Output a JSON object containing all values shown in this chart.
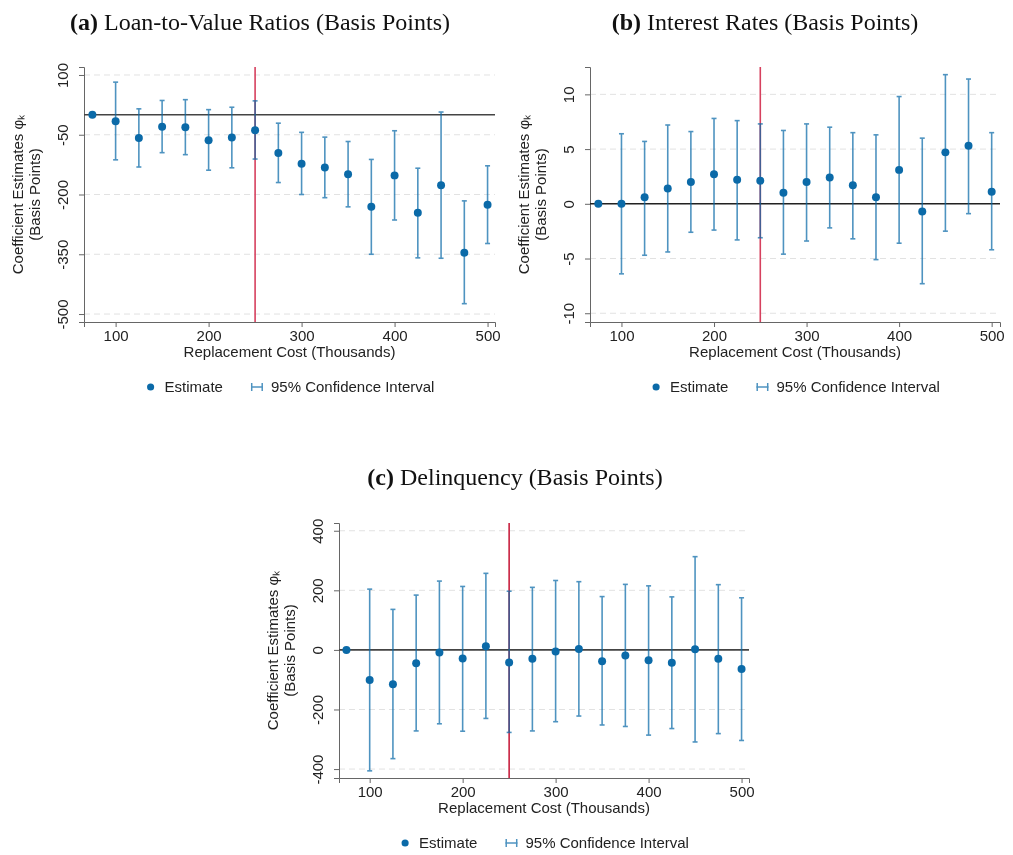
{
  "chart_data": [
    {
      "type": "scatter",
      "title": "(a) Loan-to-Value Ratios (Basis Points)",
      "xlabel": "Replacement Cost (Thousands)",
      "ylabel": "Coefficient Estimates φₖ\n(Basis Points)",
      "annotations": [
        "95% Confidence Interval"
      ],
      "x": [
        75,
        100,
        125,
        150,
        175,
        200,
        225,
        250,
        275,
        300,
        325,
        350,
        375,
        400,
        425,
        450,
        475,
        500
      ],
      "xlim": [
        66,
        508
      ],
      "xticks": [
        100,
        200,
        300,
        400,
        500
      ],
      "ylim": [
        -520,
        120
      ],
      "yticks": [
        100,
        -50,
        -200,
        -350,
        -500
      ],
      "grid": "y",
      "legend": "bottom",
      "marker": "circle",
      "series": [
        {
          "name": "Estimate",
          "color": "#0b6aa8",
          "values": [
            0,
            -16,
            -58,
            -30,
            -31,
            -64,
            -57,
            -39,
            -96,
            -123,
            -132,
            -149,
            -231,
            -152,
            -246,
            -177,
            -346,
            -226
          ],
          "errors": [
            null,
            [
              -113,
              82
            ],
            [
              -131,
              15
            ],
            [
              -95,
              36
            ],
            [
              -100,
              38
            ],
            [
              -139,
              13
            ],
            [
              -133,
              19
            ],
            [
              -111,
              35
            ],
            [
              -170,
              -21
            ],
            [
              -200,
              -44
            ],
            [
              -208,
              -56
            ],
            [
              -231,
              -67
            ],
            [
              -350,
              -112
            ],
            [
              -264,
              -40
            ],
            [
              -359,
              -134
            ],
            [
              -360,
              7
            ],
            [
              -474,
              -216
            ],
            [
              -323,
              -128
            ]
          ]
        }
      ],
      "ref_lines": [
        {
          "axis": "x",
          "value": 250,
          "color": "#d6405e"
        },
        {
          "axis": "y",
          "value": 0,
          "color": "#444444"
        }
      ]
    },
    {
      "type": "scatter",
      "title": "(b) Interest Rates (Basis Points)",
      "xlabel": "Replacement Cost (Thousands)",
      "ylabel": "Coefficient Estimates φₖ\n(Basis Points)",
      "annotations": [
        "95% Confidence Interval"
      ],
      "x": [
        75,
        100,
        125,
        150,
        175,
        200,
        225,
        250,
        275,
        300,
        325,
        350,
        375,
        400,
        425,
        450,
        475,
        500
      ],
      "xlim": [
        66,
        509
      ],
      "xticks": [
        100,
        200,
        300,
        400,
        500
      ],
      "ylim": [
        -10.8,
        12.5
      ],
      "yticks": [
        10,
        5,
        0,
        -5,
        -10
      ],
      "grid": "y",
      "legend": "bottom",
      "marker": "circle",
      "series": [
        {
          "name": "Estimate",
          "color": "#0b6aa8",
          "values": [
            0,
            0,
            0.6,
            1.4,
            2,
            2.7,
            2.2,
            2.1,
            1,
            2,
            2.4,
            1.7,
            0.6,
            3.1,
            -0.7,
            4.7,
            5.3,
            1.1
          ],
          "errors": [
            null,
            [
              -6.4,
              6.4
            ],
            [
              -4.7,
              5.7
            ],
            [
              -4.4,
              7.2
            ],
            [
              -2.6,
              6.6
            ],
            [
              -2.4,
              7.8
            ],
            [
              -3.3,
              7.6
            ],
            [
              -3.1,
              7.3
            ],
            [
              -4.6,
              6.7
            ],
            [
              -3.4,
              7.3
            ],
            [
              -2.2,
              7
            ],
            [
              -3.2,
              6.5
            ],
            [
              -5.1,
              6.3
            ],
            [
              -3.6,
              9.8
            ],
            [
              -7.3,
              6
            ],
            [
              -2.5,
              11.8
            ],
            [
              -0.9,
              11.4
            ],
            [
              -4.2,
              6.5
            ]
          ]
        }
      ],
      "ref_lines": [
        {
          "axis": "x",
          "value": 250,
          "color": "#d6405e"
        },
        {
          "axis": "y",
          "value": 0,
          "color": "#222222"
        }
      ]
    },
    {
      "type": "scatter",
      "title": "(c) Delinquency (Basis Points)",
      "xlabel": "Replacement Cost (Thousands)",
      "ylabel": "Coefficient Estimates φₖ\n(Basis Points)",
      "annotations": [
        "95% Confidence Interval"
      ],
      "x": [
        75,
        100,
        125,
        150,
        175,
        200,
        225,
        250,
        275,
        300,
        325,
        350,
        375,
        400,
        425,
        450,
        475,
        500
      ],
      "xlim": [
        67,
        508
      ],
      "xticks": [
        100,
        200,
        300,
        400,
        500
      ],
      "ylim": [
        -430,
        426
      ],
      "yticks": [
        400,
        200,
        0,
        -200,
        -400
      ],
      "grid": "y",
      "legend": "bottom",
      "marker": "circle",
      "series": [
        {
          "name": "Estimate",
          "color": "#0b6aa8",
          "values": [
            0,
            -101,
            -115,
            -45,
            -9,
            -29,
            12,
            -42,
            -30,
            -5,
            3,
            -38,
            -19,
            -35,
            -43,
            2,
            -30,
            -64
          ],
          "errors": [
            null,
            [
              -406,
              204
            ],
            [
              -365,
              136
            ],
            [
              -272,
              184
            ],
            [
              -248,
              231
            ],
            [
              -273,
              213
            ],
            [
              -230,
              257
            ],
            [
              -277,
              197
            ],
            [
              -272,
              210
            ],
            [
              -241,
              233
            ],
            [
              -222,
              229
            ],
            [
              -252,
              179
            ],
            [
              -257,
              220
            ],
            [
              -286,
              215
            ],
            [
              -264,
              178
            ],
            [
              -309,
              313
            ],
            [
              -281,
              219
            ],
            [
              -304,
              175
            ]
          ]
        }
      ],
      "ref_lines": [
        {
          "axis": "x",
          "value": 250,
          "color": "#c8203f"
        },
        {
          "axis": "y",
          "value": 0,
          "color": "#444444"
        }
      ]
    }
  ]
}
